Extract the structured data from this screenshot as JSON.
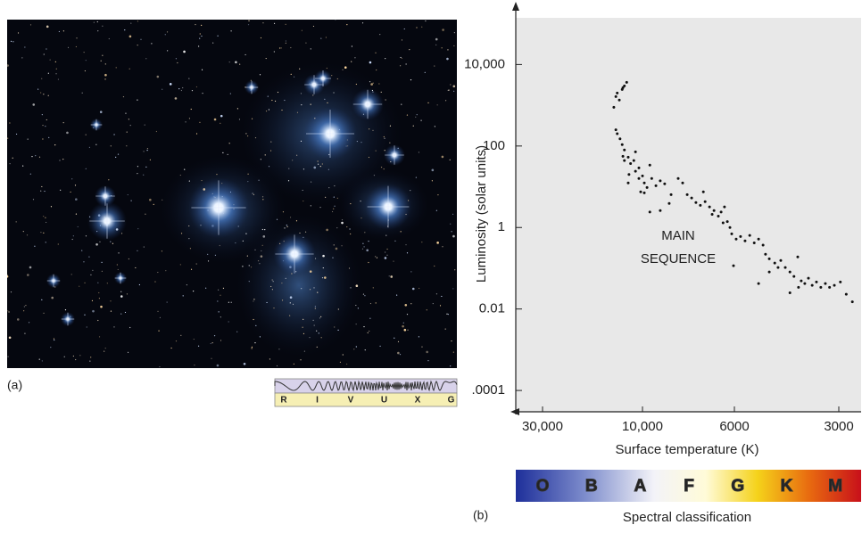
{
  "panel_a": {
    "label": "(a)",
    "wavelength_bands": [
      "R",
      "I",
      "V",
      "U",
      "X",
      "G"
    ]
  },
  "chart_data": {
    "type": "scatter",
    "panel_label": "(b)",
    "xlabel": "Surface temperature (K)",
    "ylabel": "Luminosity (solar units)",
    "annotation": [
      "MAIN",
      "SEQUENCE"
    ],
    "spectral_classes": [
      "O",
      "B",
      "A",
      "F",
      "G",
      "K",
      "M"
    ],
    "spectral_label": "Spectral classification",
    "color": "#111111",
    "background": "#e8e8e8",
    "xscale": "log",
    "yscale": "log",
    "xlim": [
      40000,
      2600
    ],
    "ylim": [
      3e-05,
      140000
    ],
    "xticks": [
      {
        "value": 30000,
        "label": "30,000"
      },
      {
        "value": 10000,
        "label": "10,000"
      },
      6000,
      3000
    ],
    "yticks": [
      {
        "value": 10000,
        "label": "10,000"
      },
      100,
      1,
      0.01,
      {
        "value": 0.0001,
        "label": ".0001"
      }
    ],
    "x": [
      13700,
      13400,
      13200,
      12500,
      12200,
      11900,
      12400,
      12900,
      13400,
      13200,
      12800,
      12500,
      12200,
      12400,
      12200,
      11700,
      11400,
      11000,
      11600,
      10800,
      10400,
      10000,
      9900,
      10200,
      9750,
      9500,
      9280,
      9060,
      8840,
      9600,
      8200,
      8000,
      8530,
      7800,
      7610,
      7430,
      7250,
      7060,
      6890,
      6790,
      6720,
      6560,
      6460,
      6340,
      6240,
      6150,
      6090,
      5930,
      5760,
      5590,
      5420,
      5260,
      5110,
      4960,
      6030,
      4880,
      4760,
      4590,
      4490,
      4410,
      4280,
      4150,
      4040,
      3940,
      5110,
      3850,
      3760,
      3670,
      3580,
      3480,
      3380,
      3280,
      3190,
      3090,
      2970,
      2860,
      2750,
      4150,
      3920,
      4760,
      9060,
      9600,
      6390,
      7130,
      8620,
      10400,
      10800,
      11700,
      9900
    ],
    "values": [
      890,
      1630,
      2000,
      2440,
      2990,
      3660,
      2700,
      1340,
      250,
      200,
      150,
      108,
      80,
      56,
      44,
      53,
      37,
      44,
      20,
      24,
      16,
      18.5,
      12.4,
      7.5,
      9.6,
      16,
      10.6,
      14,
      11.8,
      34,
      16,
      12.4,
      6.4,
      6.4,
      5.3,
      4.1,
      3.5,
      4.3,
      3.2,
      2.1,
      2.6,
      1.9,
      2.4,
      3.2,
      1.4,
      1.0,
      0.7,
      0.52,
      0.6,
      0.47,
      0.64,
      0.42,
      0.52,
      0.37,
      0.115,
      0.22,
      0.17,
      0.134,
      0.104,
      0.155,
      0.104,
      0.081,
      0.063,
      0.19,
      0.042,
      0.049,
      0.042,
      0.057,
      0.038,
      0.046,
      0.034,
      0.042,
      0.034,
      0.038,
      0.046,
      0.023,
      0.015,
      0.025,
      0.034,
      0.081,
      2.6,
      2.4,
      1.3,
      7.5,
      3.9,
      29,
      72,
      12.4,
      7.1
    ]
  }
}
